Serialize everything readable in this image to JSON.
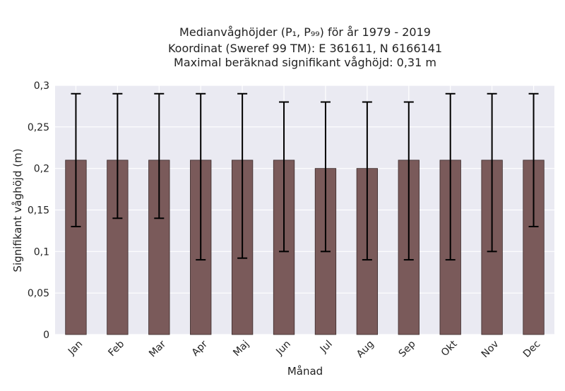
{
  "chart_data": {
    "type": "bar",
    "title_lines": [
      "Medianvåghöjder (P₁, P₉₉) för år 1979 - 2019",
      "Koordinat (Sweref 99 TM): E 361611, N 6166141",
      "Maximal beräknad signifikant våghöjd: 0,31 m"
    ],
    "xlabel": "Månad",
    "ylabel": "Signifikant våghöjd (m)",
    "categories": [
      "Jan",
      "Feb",
      "Mar",
      "Apr",
      "Maj",
      "Jun",
      "Jul",
      "Aug",
      "Sep",
      "Okt",
      "Nov",
      "Dec"
    ],
    "values": [
      0.21,
      0.21,
      0.21,
      0.21,
      0.21,
      0.21,
      0.2,
      0.2,
      0.21,
      0.21,
      0.21,
      0.21
    ],
    "lower": [
      0.13,
      0.14,
      0.14,
      0.09,
      0.092,
      0.1,
      0.1,
      0.09,
      0.09,
      0.09,
      0.1,
      0.13
    ],
    "upper": [
      0.29,
      0.29,
      0.29,
      0.29,
      0.29,
      0.28,
      0.28,
      0.28,
      0.28,
      0.29,
      0.29,
      0.29
    ],
    "ylim": [
      0,
      0.3
    ],
    "yticks": [
      0,
      0.05,
      0.1,
      0.15,
      0.2,
      0.25,
      0.3
    ],
    "ytick_labels": [
      "0",
      "0,05",
      "0,1",
      "0,15",
      "0,2",
      "0,25",
      "0,3"
    ],
    "grid": true,
    "colors": {
      "bar": "#7a5a5a",
      "background": "#eaeaf2",
      "error_bar": "#000000"
    }
  }
}
